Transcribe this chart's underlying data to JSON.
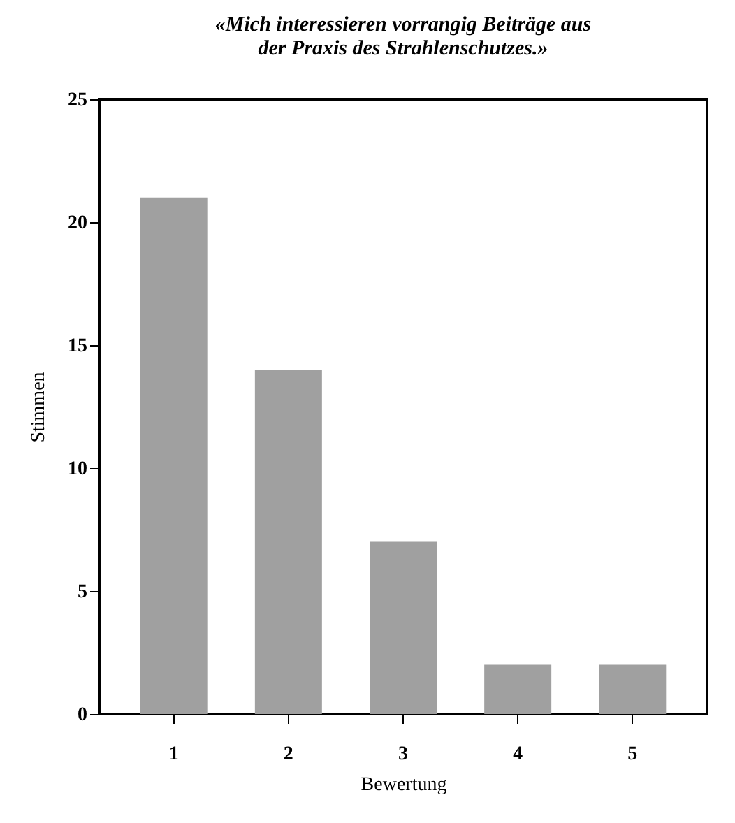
{
  "chart_data": {
    "type": "bar",
    "title": [
      "«Mich interessieren vorrangig Beiträge aus",
      "der Praxis des Strahlenschutzes.»"
    ],
    "xlabel": "Bewertung",
    "ylabel": "Stimmen",
    "categories": [
      "1",
      "2",
      "3",
      "4",
      "5"
    ],
    "values": [
      21,
      14,
      7,
      2,
      2
    ],
    "color": "#a0a0a0",
    "ylim": [
      0,
      25
    ],
    "yticks": [
      0,
      5,
      10,
      15,
      20,
      25
    ],
    "grid": false
  }
}
